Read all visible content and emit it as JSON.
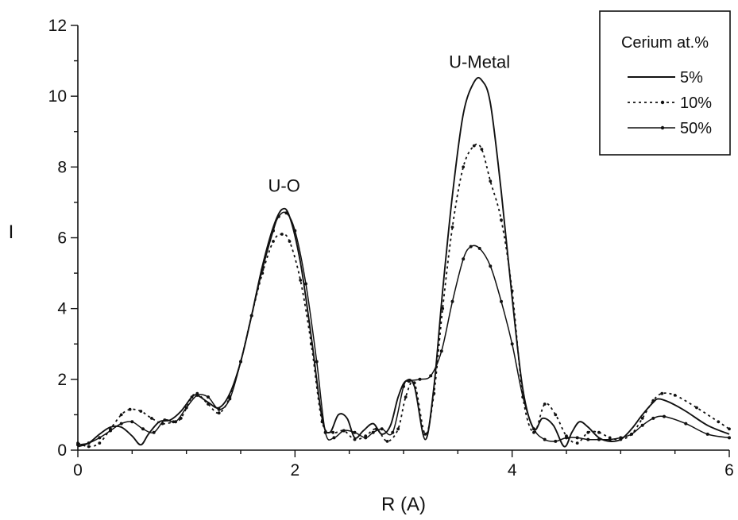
{
  "chart_data": {
    "type": "line",
    "title": "",
    "xlabel": "R (A)",
    "ylabel": "I",
    "xlim": [
      0,
      6
    ],
    "ylim": [
      0,
      12
    ],
    "x_ticks": [
      0,
      2,
      4,
      6
    ],
    "y_ticks": [
      0,
      2,
      4,
      6,
      8,
      10,
      12
    ],
    "grid": false,
    "legend": {
      "title": "Cerium at.%",
      "position": "top-right"
    },
    "annotations": [
      {
        "text": "U-O",
        "x": 1.9,
        "y": 7.3
      },
      {
        "text": "U-Metal",
        "x": 3.7,
        "y": 10.8
      }
    ],
    "series": [
      {
        "name": "5%",
        "style": "solid",
        "x": [
          0,
          0.1,
          0.2,
          0.3,
          0.4,
          0.5,
          0.58,
          0.65,
          0.75,
          0.85,
          0.95,
          1.05,
          1.1,
          1.2,
          1.3,
          1.4,
          1.5,
          1.6,
          1.7,
          1.8,
          1.88,
          1.95,
          2.05,
          2.15,
          2.25,
          2.32,
          2.4,
          2.48,
          2.55,
          2.63,
          2.72,
          2.8,
          2.88,
          2.95,
          3.02,
          3.1,
          3.2,
          3.28,
          3.36,
          3.45,
          3.55,
          3.65,
          3.72,
          3.8,
          3.9,
          4.0,
          4.1,
          4.2,
          4.28,
          4.38,
          4.48,
          4.55,
          4.62,
          4.7,
          4.8,
          4.9,
          5.0,
          5.1,
          5.2,
          5.3,
          5.35,
          5.45,
          5.6,
          5.8,
          6.0
        ],
        "y": [
          0.1,
          0.2,
          0.45,
          0.65,
          0.65,
          0.4,
          0.15,
          0.45,
          0.8,
          0.85,
          1.1,
          1.5,
          1.55,
          1.35,
          1.2,
          1.6,
          2.5,
          3.8,
          5.2,
          6.3,
          6.8,
          6.6,
          5.3,
          3.2,
          0.9,
          0.5,
          1.0,
          0.9,
          0.35,
          0.55,
          0.75,
          0.45,
          0.7,
          1.5,
          1.95,
          1.8,
          0.3,
          1.8,
          4.5,
          7.2,
          9.5,
          10.4,
          10.45,
          9.8,
          7.3,
          4.3,
          1.7,
          0.6,
          0.9,
          0.7,
          0.1,
          0.5,
          0.8,
          0.65,
          0.35,
          0.25,
          0.3,
          0.6,
          1.0,
          1.35,
          1.45,
          1.35,
          1.1,
          0.7,
          0.45
        ]
      },
      {
        "name": "10%",
        "style": "dotted",
        "x": [
          0,
          0.1,
          0.2,
          0.3,
          0.4,
          0.48,
          0.58,
          0.68,
          0.78,
          0.88,
          0.95,
          1.05,
          1.1,
          1.2,
          1.3,
          1.4,
          1.5,
          1.6,
          1.7,
          1.8,
          1.88,
          1.95,
          2.05,
          2.15,
          2.25,
          2.35,
          2.45,
          2.55,
          2.65,
          2.75,
          2.85,
          2.95,
          3.02,
          3.1,
          3.2,
          3.28,
          3.36,
          3.45,
          3.55,
          3.65,
          3.72,
          3.8,
          3.9,
          4.0,
          4.1,
          4.2,
          4.3,
          4.4,
          4.5,
          4.6,
          4.7,
          4.8,
          4.9,
          5.0,
          5.1,
          5.2,
          5.3,
          5.38,
          5.5,
          5.7,
          5.9,
          6.0
        ],
        "y": [
          0.2,
          0.1,
          0.2,
          0.6,
          1.0,
          1.15,
          1.1,
          0.9,
          0.75,
          0.8,
          0.9,
          1.5,
          1.6,
          1.3,
          1.05,
          1.5,
          2.5,
          3.8,
          5.0,
          5.9,
          6.1,
          5.9,
          4.8,
          3.0,
          0.8,
          0.5,
          0.55,
          0.3,
          0.4,
          0.6,
          0.25,
          0.6,
          1.5,
          1.9,
          0.45,
          1.6,
          4.0,
          6.3,
          8.0,
          8.6,
          8.5,
          7.6,
          6.5,
          4.5,
          1.5,
          0.5,
          1.3,
          1.0,
          0.4,
          0.2,
          0.5,
          0.5,
          0.35,
          0.3,
          0.45,
          0.9,
          1.4,
          1.6,
          1.55,
          1.2,
          0.8,
          0.6
        ]
      },
      {
        "name": "50%",
        "style": "solid-markers",
        "x": [
          0,
          0.1,
          0.2,
          0.3,
          0.4,
          0.5,
          0.6,
          0.7,
          0.8,
          0.9,
          1.0,
          1.1,
          1.2,
          1.3,
          1.4,
          1.5,
          1.6,
          1.7,
          1.8,
          1.85,
          1.92,
          2.0,
          2.1,
          2.2,
          2.28,
          2.36,
          2.45,
          2.55,
          2.65,
          2.72,
          2.8,
          2.9,
          3.0,
          3.05,
          3.15,
          3.25,
          3.35,
          3.45,
          3.55,
          3.62,
          3.7,
          3.8,
          3.9,
          4.0,
          4.1,
          4.2,
          4.3,
          4.4,
          4.5,
          4.6,
          4.7,
          4.8,
          4.9,
          5.0,
          5.1,
          5.2,
          5.3,
          5.4,
          5.6,
          5.8,
          6.0
        ],
        "y": [
          0.15,
          0.2,
          0.35,
          0.55,
          0.75,
          0.8,
          0.6,
          0.5,
          0.85,
          0.8,
          1.2,
          1.55,
          1.5,
          1.15,
          1.45,
          2.5,
          3.8,
          5.1,
          6.2,
          6.6,
          6.7,
          6.2,
          4.7,
          2.5,
          0.5,
          0.35,
          0.55,
          0.5,
          0.35,
          0.5,
          0.6,
          0.5,
          1.8,
          1.95,
          2.0,
          2.1,
          2.8,
          4.2,
          5.4,
          5.75,
          5.7,
          5.2,
          4.2,
          3.0,
          1.5,
          0.6,
          0.3,
          0.25,
          0.35,
          0.35,
          0.3,
          0.3,
          0.3,
          0.35,
          0.45,
          0.7,
          0.9,
          0.95,
          0.75,
          0.45,
          0.35
        ]
      }
    ]
  }
}
